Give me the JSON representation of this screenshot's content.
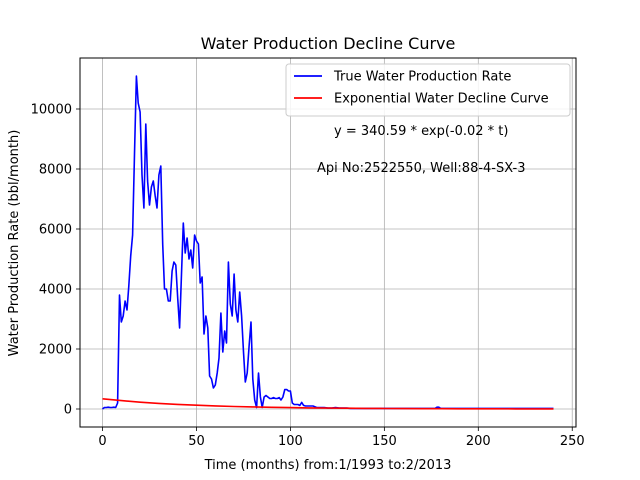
{
  "chart_data": {
    "type": "line",
    "title": "Water Production Decline Curve",
    "xlabel": "Time (months) from:1/1993 to:2/2013",
    "ylabel": "Water Production Rate (bbl/month)",
    "xlim": [
      -12,
      252
    ],
    "ylim": [
      -600,
      11700
    ],
    "xticks": [
      0,
      50,
      100,
      150,
      200,
      250
    ],
    "yticks": [
      0,
      2000,
      4000,
      6000,
      8000,
      10000
    ],
    "grid": true,
    "legend_position": "top-right",
    "annotations": [
      "y = 340.59 * exp(-0.02 * t)",
      "Api No:2522550, Well:88-4-SX-3"
    ],
    "series": [
      {
        "name": "True Water Production Rate",
        "color": "#0000ff",
        "x": [
          0,
          1,
          2,
          3,
          4,
          5,
          6,
          7,
          8,
          9,
          10,
          11,
          12,
          13,
          14,
          15,
          16,
          17,
          18,
          19,
          20,
          21,
          22,
          23,
          24,
          25,
          26,
          27,
          28,
          29,
          30,
          31,
          32,
          33,
          34,
          35,
          36,
          37,
          38,
          39,
          40,
          41,
          42,
          43,
          44,
          45,
          46,
          47,
          48,
          49,
          50,
          51,
          52,
          53,
          54,
          55,
          56,
          57,
          58,
          59,
          60,
          61,
          62,
          63,
          64,
          65,
          66,
          67,
          68,
          69,
          70,
          71,
          72,
          73,
          74,
          75,
          76,
          77,
          78,
          79,
          80,
          81,
          82,
          83,
          84,
          85,
          86,
          87,
          88,
          89,
          90,
          91,
          92,
          93,
          94,
          95,
          96,
          97,
          98,
          99,
          100,
          101,
          102,
          103,
          104,
          105,
          106,
          107,
          108,
          109,
          110,
          112,
          114,
          116,
          118,
          120,
          122,
          124,
          126,
          128,
          130,
          132,
          134,
          136,
          138,
          140,
          145,
          150,
          155,
          160,
          165,
          170,
          175,
          176,
          177,
          178,
          179,
          180,
          185,
          190,
          195,
          200,
          205,
          210,
          215,
          220,
          225,
          230,
          235,
          240
        ],
        "y": [
          0,
          50,
          50,
          60,
          50,
          50,
          60,
          50,
          200,
          3800,
          2900,
          3100,
          3600,
          3300,
          4100,
          5100,
          5800,
          8500,
          11100,
          10200,
          9900,
          7800,
          6700,
          9500,
          7600,
          6800,
          7400,
          7600,
          7100,
          6700,
          7800,
          8100,
          5500,
          4000,
          4000,
          3600,
          3600,
          4600,
          4900,
          4800,
          3700,
          2700,
          4500,
          6200,
          5200,
          5700,
          5000,
          5300,
          4700,
          5800,
          5600,
          5500,
          4200,
          4400,
          2500,
          3100,
          2700,
          1100,
          1000,
          700,
          800,
          1200,
          1700,
          3200,
          1900,
          2600,
          2200,
          4900,
          3500,
          3100,
          4500,
          3300,
          2900,
          3900,
          3100,
          1900,
          900,
          1200,
          2100,
          2900,
          1000,
          300,
          50,
          1200,
          400,
          50,
          400,
          450,
          400,
          350,
          350,
          380,
          350,
          350,
          380,
          300,
          400,
          650,
          650,
          600,
          600,
          200,
          150,
          150,
          150,
          120,
          220,
          120,
          100,
          100,
          100,
          100,
          50,
          50,
          50,
          30,
          30,
          50,
          30,
          30,
          30,
          20,
          20,
          20,
          20,
          20,
          20,
          20,
          20,
          20,
          20,
          20,
          20,
          20,
          20,
          60,
          60,
          20,
          20,
          20,
          20,
          20,
          20,
          20,
          20,
          20,
          20,
          20,
          20,
          20
        ]
      },
      {
        "name": "Exponential Water Decline Curve",
        "color": "#ff0000",
        "x": [
          0,
          10,
          20,
          30,
          40,
          50,
          60,
          70,
          80,
          90,
          100,
          110,
          120,
          130,
          140,
          150,
          160,
          170,
          180,
          190,
          200,
          210,
          220,
          230,
          240
        ],
        "y": [
          340.59,
          278.85,
          228.3,
          186.91,
          153.03,
          125.29,
          102.58,
          83.98,
          68.76,
          56.29,
          46.09,
          37.73,
          30.89,
          25.29,
          20.71,
          16.95,
          13.88,
          11.36,
          9.3,
          7.62,
          6.24,
          5.11,
          4.18,
          3.42,
          2.8
        ]
      }
    ]
  }
}
